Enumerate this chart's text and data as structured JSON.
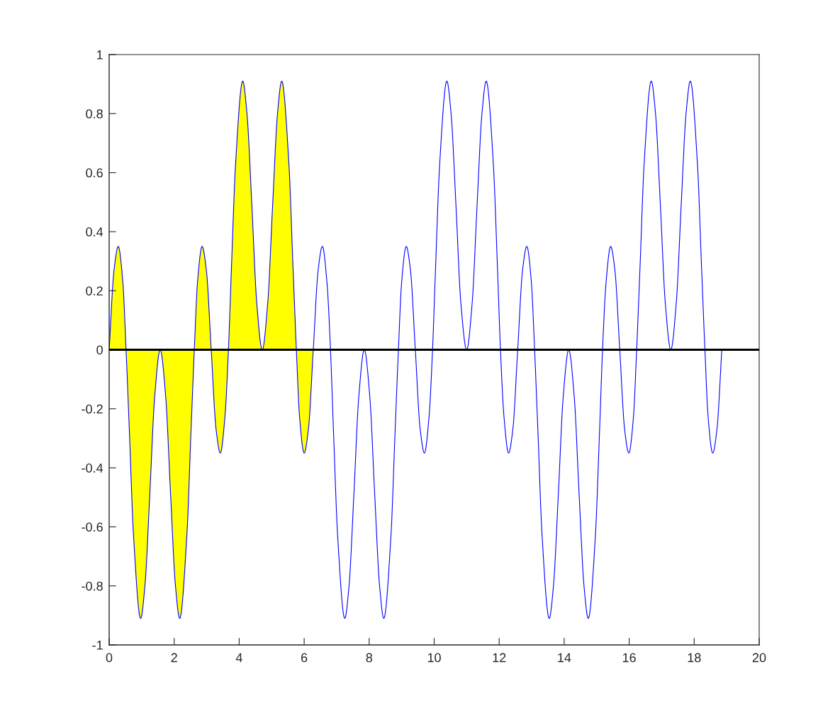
{
  "chart_data": {
    "type": "line",
    "xlim": [
      0,
      20
    ],
    "xticks": [
      0,
      2,
      4,
      6,
      8,
      10,
      12,
      14,
      16,
      18,
      20
    ],
    "ylim": [
      -1,
      1
    ],
    "yticks": [
      -1,
      -0.8,
      -0.6,
      -0.4,
      -0.2,
      0,
      0.2,
      0.4,
      0.6,
      0.8,
      1
    ],
    "ref_lines": [
      {
        "axis": "y",
        "value": 0,
        "color": "#000000"
      }
    ],
    "series": [
      {
        "type": "area",
        "color": "#ffff00",
        "x": [
          0,
          0.15,
          0.28,
          0.42,
          0.52,
          0.62,
          0.75,
          0.97,
          1.1,
          1.25,
          1.4,
          1.57,
          1.74,
          1.89,
          2.04,
          2.17,
          2.39,
          2.52,
          2.62,
          2.72,
          2.86,
          2.99,
          3.14,
          3.29,
          3.42,
          3.56,
          3.67,
          3.76,
          3.89,
          4.11,
          4.24,
          4.39,
          4.54,
          4.71,
          4.88,
          5.03,
          5.18,
          5.31,
          5.53,
          5.66,
          5.76,
          5.86,
          6.0,
          6.13,
          6.28
        ],
        "values": [
          0,
          0.27,
          0.35,
          0.23,
          0,
          -0.27,
          -0.63,
          -0.91,
          -0.8,
          -0.49,
          -0.16,
          0,
          -0.16,
          -0.49,
          -0.8,
          -0.91,
          -0.63,
          -0.27,
          0,
          0.23,
          0.35,
          0.27,
          0,
          -0.27,
          -0.35,
          -0.23,
          0,
          0.27,
          0.63,
          0.91,
          0.8,
          0.49,
          0.16,
          0,
          0.16,
          0.49,
          0.8,
          0.91,
          0.63,
          0.27,
          0,
          -0.23,
          -0.35,
          -0.27,
          0
        ]
      },
      {
        "color": "#0000ff",
        "x": [
          0,
          0.15,
          0.28,
          0.42,
          0.52,
          0.62,
          0.75,
          0.97,
          1.1,
          1.25,
          1.4,
          1.57,
          1.74,
          1.89,
          2.04,
          2.17,
          2.39,
          2.52,
          2.62,
          2.72,
          2.86,
          2.99,
          3.14,
          3.29,
          3.42,
          3.56,
          3.67,
          3.76,
          3.89,
          4.11,
          4.24,
          4.39,
          4.54,
          4.71,
          4.88,
          5.03,
          5.18,
          5.31,
          5.53,
          5.66,
          5.76,
          5.86,
          6.0,
          6.13,
          6.28,
          6.43,
          6.56,
          6.7,
          6.81,
          6.9,
          7.03,
          7.25,
          7.38,
          7.53,
          7.68,
          7.85,
          8.02,
          8.17,
          8.32,
          8.45,
          8.67,
          8.8,
          8.9,
          9.0,
          9.14,
          9.27,
          9.42,
          9.57,
          9.7,
          9.84,
          9.95,
          10.04,
          10.17,
          10.39,
          10.52,
          10.67,
          10.82,
          11.0,
          11.17,
          11.32,
          11.47,
          11.6,
          11.82,
          11.95,
          12.04,
          12.15,
          12.29,
          12.42,
          12.57,
          12.72,
          12.85,
          12.99,
          13.09,
          13.19,
          13.32,
          13.54,
          13.67,
          13.82,
          13.97,
          14.14,
          14.31,
          14.46,
          14.61,
          14.74,
          14.96,
          15.09,
          15.18,
          15.29,
          15.43,
          15.56,
          15.71,
          15.86,
          15.99,
          16.13,
          16.23,
          16.33,
          16.46,
          16.68,
          16.81,
          16.96,
          17.11,
          17.28,
          17.45,
          17.6,
          17.75,
          17.88,
          18.1,
          18.23,
          18.33,
          18.43,
          18.57,
          18.7,
          18.85
        ],
        "values": [
          0,
          0.27,
          0.35,
          0.23,
          0,
          -0.27,
          -0.63,
          -0.91,
          -0.8,
          -0.49,
          -0.16,
          0,
          -0.16,
          -0.49,
          -0.8,
          -0.91,
          -0.63,
          -0.27,
          0,
          0.23,
          0.35,
          0.27,
          0,
          -0.27,
          -0.35,
          -0.23,
          0,
          0.27,
          0.63,
          0.91,
          0.8,
          0.49,
          0.16,
          0,
          0.16,
          0.49,
          0.8,
          0.91,
          0.63,
          0.27,
          0,
          -0.23,
          -0.35,
          -0.27,
          0,
          0.27,
          0.35,
          0.23,
          0,
          -0.27,
          -0.63,
          -0.91,
          -0.8,
          -0.49,
          -0.16,
          0,
          -0.16,
          -0.49,
          -0.8,
          -0.91,
          -0.63,
          -0.27,
          0,
          0.23,
          0.35,
          0.27,
          0,
          -0.27,
          -0.35,
          -0.23,
          0,
          0.27,
          0.63,
          0.91,
          0.8,
          0.49,
          0.16,
          0,
          0.16,
          0.49,
          0.8,
          0.91,
          0.63,
          0.27,
          0,
          -0.23,
          -0.35,
          -0.27,
          0,
          0.27,
          0.35,
          0.23,
          0,
          -0.27,
          -0.63,
          -0.91,
          -0.8,
          -0.49,
          -0.16,
          0,
          -0.16,
          -0.49,
          -0.8,
          -0.91,
          -0.63,
          -0.27,
          0,
          0.23,
          0.35,
          0.27,
          0,
          -0.27,
          -0.35,
          -0.23,
          0,
          0.27,
          0.63,
          0.91,
          0.8,
          0.49,
          0.16,
          0,
          0.16,
          0.49,
          0.8,
          0.91,
          0.63,
          0.27,
          0,
          -0.23,
          -0.35,
          -0.27,
          0
        ]
      }
    ]
  }
}
